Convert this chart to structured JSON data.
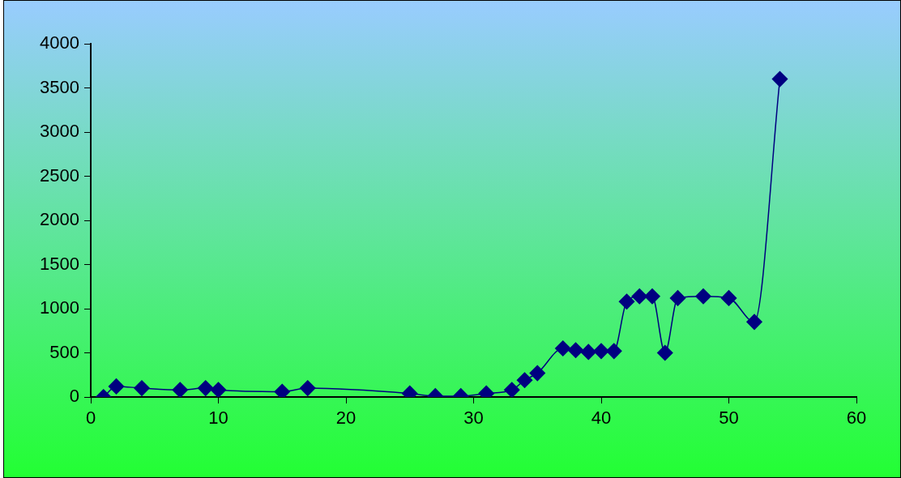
{
  "chart_data": {
    "type": "line",
    "x": [
      1,
      2,
      4,
      7,
      9,
      10,
      15,
      17,
      25,
      27,
      29,
      31,
      33,
      34,
      35,
      37,
      38,
      39,
      40,
      41,
      42,
      43,
      44,
      45,
      46,
      48,
      50,
      52,
      54
    ],
    "series": [
      {
        "color": "#000080",
        "values": [
          0,
          120,
          100,
          80,
          100,
          80,
          60,
          100,
          40,
          10,
          10,
          40,
          80,
          190,
          270,
          550,
          530,
          510,
          520,
          520,
          1080,
          1140,
          1140,
          500,
          1120,
          1140,
          1120,
          850,
          3600
        ]
      }
    ],
    "xlim": [
      0,
      60
    ],
    "xticks": [
      0,
      10,
      20,
      30,
      40,
      50,
      60
    ],
    "ylim": [
      0,
      4000
    ],
    "yticks": [
      0,
      500,
      1000,
      1500,
      2000,
      2500,
      3000,
      3500,
      4000
    ],
    "grid": false,
    "legend": false,
    "marker": "diamond",
    "line_style": "solid"
  }
}
